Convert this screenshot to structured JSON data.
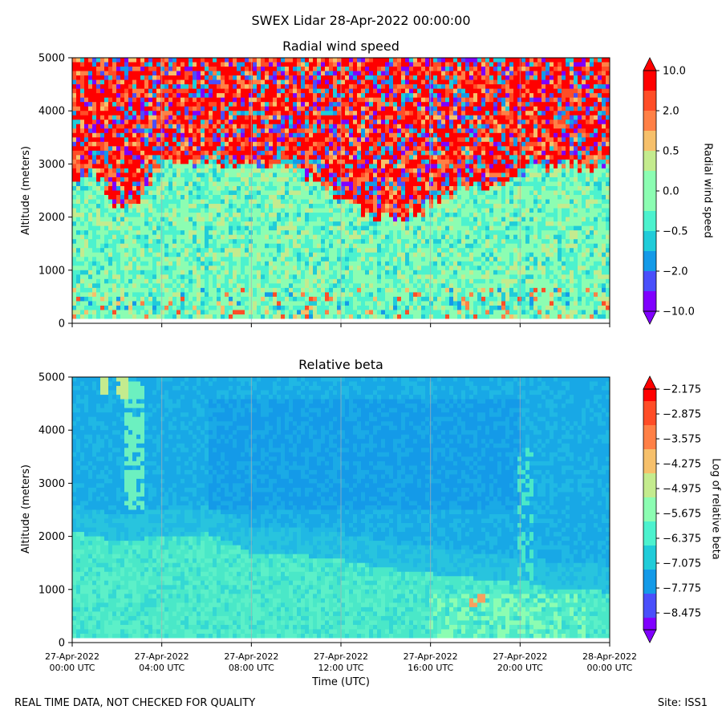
{
  "suptitle": "SWEX Lidar 28-Apr-2022 00:00:00",
  "footer": {
    "left": "REAL TIME DATA, NOT CHECKED FOR QUALITY",
    "right": "Site: ISS1"
  },
  "xlabel": "Time (UTC)",
  "x_tick_labels": [
    [
      "27-Apr-2022",
      "00:00 UTC"
    ],
    [
      "27-Apr-2022",
      "04:00 UTC"
    ],
    [
      "27-Apr-2022",
      "08:00 UTC"
    ],
    [
      "27-Apr-2022",
      "12:00 UTC"
    ],
    [
      "27-Apr-2022",
      "16:00 UTC"
    ],
    [
      "27-Apr-2022",
      "20:00 UTC"
    ],
    [
      "28-Apr-2022",
      "00:00 UTC"
    ]
  ],
  "colors": {
    "colormap": [
      "#8000ff",
      "#4a4ffb",
      "#149ae8",
      "#20ccd9",
      "#4cf2ce",
      "#8cfdb2",
      "#c4eb8e",
      "#f6c06b",
      "#ff8046",
      "#ff4d27",
      "#ff0000"
    ]
  },
  "chart_data": [
    {
      "type": "heatmap",
      "title": "Radial wind speed",
      "ylabel": "Altitude (meters)",
      "xlabel": "",
      "x_range_hours": [
        0,
        24
      ],
      "ylim": [
        0,
        5000
      ],
      "y_ticks": [
        0,
        1000,
        2000,
        3000,
        4000,
        5000
      ],
      "y_tick_labels": [
        "0",
        "1000",
        "2000",
        "3000",
        "4000",
        "5000"
      ],
      "colorbar": {
        "label": "Radial wind speed",
        "tick_labels": [
          "10.0",
          "2.0",
          "0.5",
          "0.0",
          "−0.5",
          "−2.0",
          "−10.0"
        ],
        "extend": "both"
      },
      "features": {
        "noise_top_boundary_m": [
          [
            0,
            2600
          ],
          [
            1,
            2900
          ],
          [
            2,
            2200
          ],
          [
            3,
            2300
          ],
          [
            4,
            3000
          ],
          [
            6,
            3050
          ],
          [
            8,
            3000
          ],
          [
            10,
            2900
          ],
          [
            11,
            2650
          ],
          [
            12,
            2300
          ],
          [
            13,
            2100
          ],
          [
            14,
            2000
          ],
          [
            15,
            2000
          ],
          [
            16,
            2200
          ],
          [
            17,
            2450
          ],
          [
            18,
            2600
          ],
          [
            19,
            2500
          ],
          [
            20,
            2800
          ],
          [
            22,
            3000
          ],
          [
            24,
            2950
          ]
        ]
      }
    },
    {
      "type": "heatmap",
      "title": "Relative beta",
      "ylabel": "Altitude (meters)",
      "xlabel": "Time (UTC)",
      "x_range_hours": [
        0,
        24
      ],
      "ylim": [
        0,
        5000
      ],
      "y_ticks": [
        0,
        1000,
        2000,
        3000,
        4000,
        5000
      ],
      "y_tick_labels": [
        "0",
        "1000",
        "2000",
        "3000",
        "4000",
        "5000"
      ],
      "colorbar": {
        "label": "Log of relative beta",
        "tick_labels": [
          "−2.175",
          "−2.875",
          "−3.575",
          "−4.275",
          "−4.975",
          "−5.675",
          "−6.375",
          "−7.075",
          "−7.775",
          "−8.475"
        ],
        "extend": "both"
      },
      "features": {
        "boundary_layer_top_m": [
          [
            0,
            2100
          ],
          [
            2,
            1900
          ],
          [
            4,
            2000
          ],
          [
            6,
            2050
          ],
          [
            7,
            1900
          ],
          [
            8,
            1700
          ],
          [
            10,
            1650
          ],
          [
            12,
            1550
          ],
          [
            14,
            1400
          ],
          [
            16,
            1300
          ],
          [
            18,
            1200
          ],
          [
            20,
            1100
          ],
          [
            22,
            1000
          ],
          [
            24,
            950
          ]
        ]
      }
    }
  ]
}
